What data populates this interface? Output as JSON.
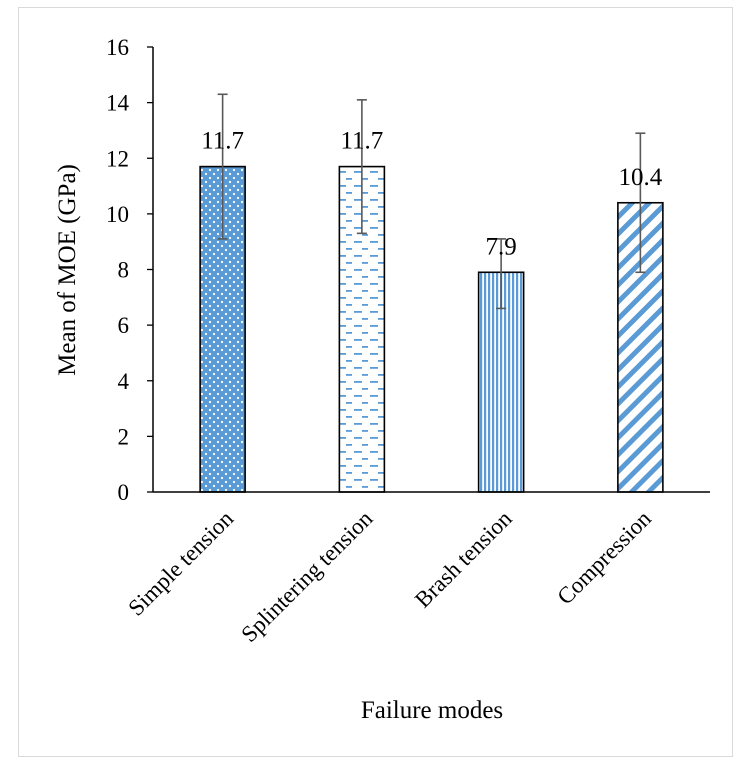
{
  "chart_data": {
    "type": "bar",
    "title": "",
    "xlabel": "Failure modes",
    "ylabel": "Mean of MOE (GPa)",
    "ylim": [
      0,
      16
    ],
    "yticks": [
      0,
      2,
      4,
      6,
      8,
      10,
      12,
      14,
      16
    ],
    "grid": false,
    "categories": [
      "Simple tension",
      "Splintering tension",
      "Brash tension",
      "Compression"
    ],
    "values": [
      11.7,
      11.7,
      7.9,
      10.4
    ],
    "data_labels": [
      "11.7",
      "11.7",
      "7.9",
      "10.4"
    ],
    "error_bars": [
      {
        "low": 9.1,
        "high": 14.3
      },
      {
        "low": 9.3,
        "high": 14.1
      },
      {
        "low": 6.6,
        "high": 9.1
      },
      {
        "low": 7.9,
        "high": 12.9
      }
    ],
    "patterns": [
      "dots",
      "dashes",
      "vertical-lines",
      "diagonal-stripes"
    ],
    "colors": {
      "pattern": "#5b9bd5",
      "bar_outline": "#000000",
      "axis": "#000000",
      "error_bar": "#595959"
    }
  }
}
